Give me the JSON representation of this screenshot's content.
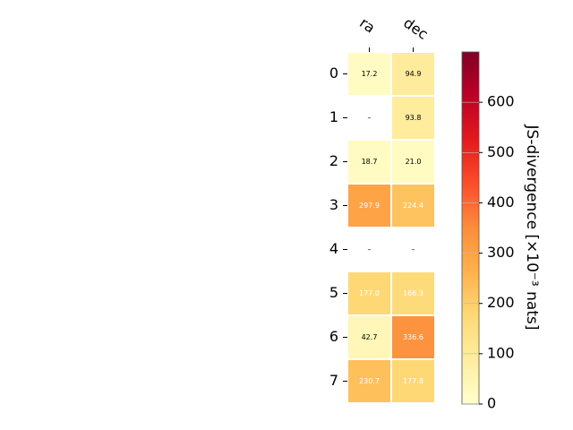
{
  "chart_data": {
    "type": "heatmap",
    "columns": [
      "ra",
      "dec"
    ],
    "rows": [
      "0",
      "1",
      "2",
      "3",
      "4",
      "5",
      "6",
      "7"
    ],
    "values": [
      [
        17.2,
        94.9
      ],
      [
        null,
        93.8
      ],
      [
        18.7,
        21.0
      ],
      [
        297.9,
        224.4
      ],
      [
        null,
        null
      ],
      [
        177.0,
        166.3
      ],
      [
        42.7,
        336.6
      ],
      [
        230.7,
        177.8
      ]
    ],
    "cell_labels": [
      [
        "17.2",
        "94.9"
      ],
      [
        "–",
        "93.8"
      ],
      [
        "18.7",
        "21.0"
      ],
      [
        "297.9",
        "224.4"
      ],
      [
        "–",
        "–"
      ],
      [
        "177.0",
        "166.3"
      ],
      [
        "42.7",
        "336.6"
      ],
      [
        "230.7",
        "177.8"
      ]
    ],
    "colorbar": {
      "label": "JS-divergence [×10⁻³ nats]",
      "range": [
        0,
        700
      ],
      "ticks": [
        "0",
        "100",
        "200",
        "300",
        "400",
        "500",
        "600"
      ],
      "colormap": "YlOrRd"
    },
    "label_colors": {
      "dark": "#000000",
      "light": "#ffffff"
    }
  }
}
